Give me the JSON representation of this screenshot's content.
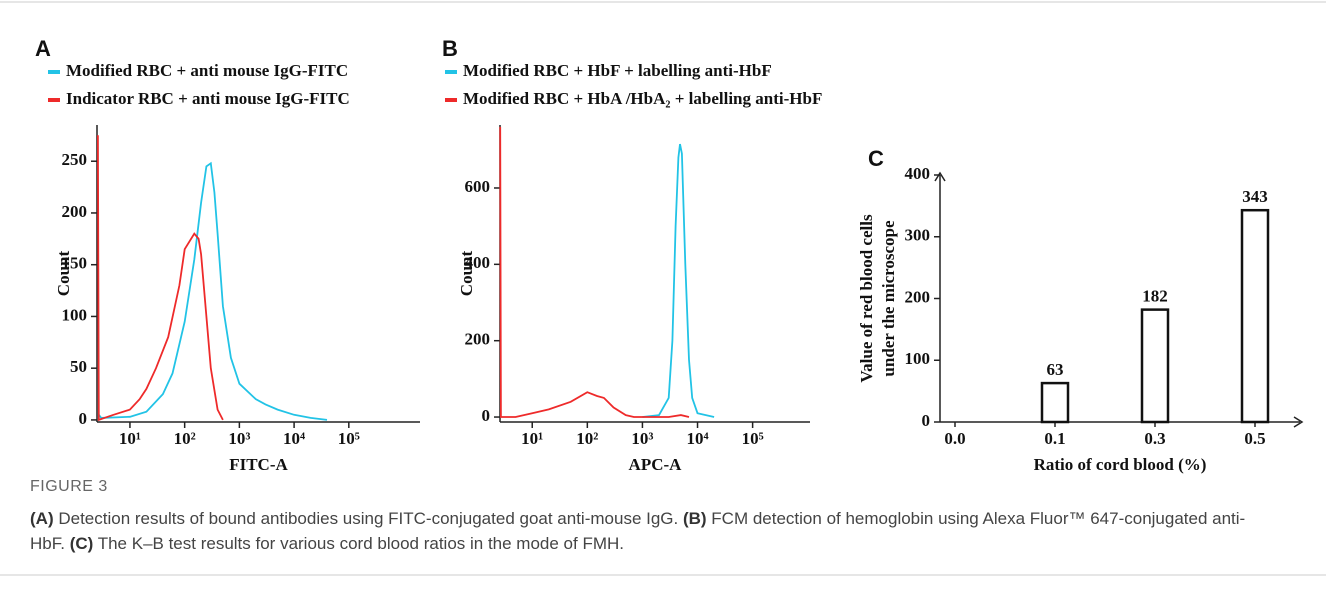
{
  "chart_data": [
    {
      "type": "line",
      "panel": "A",
      "x_scale": "log",
      "x_label": "FITC-A",
      "y_label": "Count",
      "xlim": [
        2.5,
        2000000
      ],
      "ylim": [
        -2,
        285
      ],
      "xticks": [
        {
          "value": 10,
          "label": "10¹"
        },
        {
          "value": 100,
          "label": "10²"
        },
        {
          "value": 1000,
          "label": "10³"
        },
        {
          "value": 10000,
          "label": "10⁴"
        },
        {
          "value": 100000,
          "label": "10⁵"
        }
      ],
      "yticks": [
        0,
        50,
        100,
        150,
        200,
        250
      ],
      "series": [
        {
          "name": "Modified  RBC + anti mouse IgG-FITC",
          "color": "#22c3e6",
          "x": [
            2.7,
            3,
            10,
            20,
            40,
            60,
            100,
            150,
            200,
            250,
            300,
            350,
            400,
            500,
            700,
            1000,
            2000,
            3000,
            5000,
            10000,
            20000,
            40000
          ],
          "values": [
            5,
            2,
            3,
            8,
            25,
            45,
            95,
            155,
            210,
            245,
            248,
            220,
            180,
            110,
            60,
            35,
            20,
            15,
            10,
            5,
            2,
            0
          ]
        },
        {
          "name": "Indicator RBC + anti mouse IgG-FITC",
          "color": "#ee2a2a",
          "x": [
            2.6,
            2.7,
            5,
            10,
            15,
            20,
            30,
            50,
            80,
            100,
            150,
            180,
            200,
            250,
            300,
            400,
            500
          ],
          "values": [
            275,
            0,
            5,
            10,
            20,
            30,
            50,
            80,
            130,
            165,
            180,
            175,
            160,
            100,
            50,
            10,
            0
          ]
        }
      ]
    },
    {
      "type": "line",
      "panel": "B",
      "x_scale": "log",
      "x_label": "APC-A",
      "y_label": "Count",
      "xlim": [
        2.6,
        1100000
      ],
      "ylim": [
        -13,
        765
      ],
      "xticks": [
        {
          "value": 10,
          "label": "10¹"
        },
        {
          "value": 100,
          "label": "10²"
        },
        {
          "value": 1000,
          "label": "10³"
        },
        {
          "value": 10000,
          "label": "10⁴"
        },
        {
          "value": 100000,
          "label": "10⁵"
        }
      ],
      "yticks": [
        0,
        200,
        400,
        600
      ],
      "series": [
        {
          "name": "Modified  RBC + HbF + labelling anti-HbF",
          "color": "#22c3e6",
          "x": [
            1000,
            2000,
            3000,
            3500,
            4000,
            4500,
            4800,
            5200,
            6000,
            7000,
            8000,
            10000,
            20000
          ],
          "values": [
            0,
            5,
            50,
            200,
            500,
            680,
            715,
            690,
            400,
            150,
            50,
            10,
            0
          ]
        },
        {
          "name": "Modified RBC + HbA /HbA₂ + labelling anti-HbF",
          "color": "#ee2a2a",
          "x": [
            2.62,
            2.7,
            5,
            10,
            20,
            50,
            100,
            150,
            200,
            300,
            500,
            700,
            3000,
            5000,
            7000
          ],
          "values": [
            760,
            0,
            0,
            10,
            20,
            40,
            65,
            55,
            50,
            25,
            5,
            0,
            0,
            5,
            0
          ]
        }
      ]
    },
    {
      "type": "bar",
      "panel": "C",
      "x_label": "Ratio of cord blood (%)",
      "y_label": [
        "Value of red blood cells",
        "under the microscope"
      ],
      "categories": [
        "0.0",
        "0.1",
        "0.3",
        "0.5"
      ],
      "values": [
        null,
        63,
        182,
        343
      ],
      "ylim": [
        0,
        400
      ],
      "yticks": [
        0,
        100,
        200,
        300,
        400
      ],
      "color": "#ffffff"
    }
  ],
  "caption": {
    "figure": "FIGURE 3",
    "parts": [
      {
        "label": "(A)",
        "text": " Detection results of bound antibodies using FITC-conjugated goat anti-mouse IgG. "
      },
      {
        "label": "(B)",
        "text": " FCM detection of hemoglobin using Alexa Fluor™ 647-conjugated anti-HbF. "
      },
      {
        "label": "(C)",
        "text": " The K–B test results for various cord blood ratios in the mode of FMH."
      }
    ]
  }
}
